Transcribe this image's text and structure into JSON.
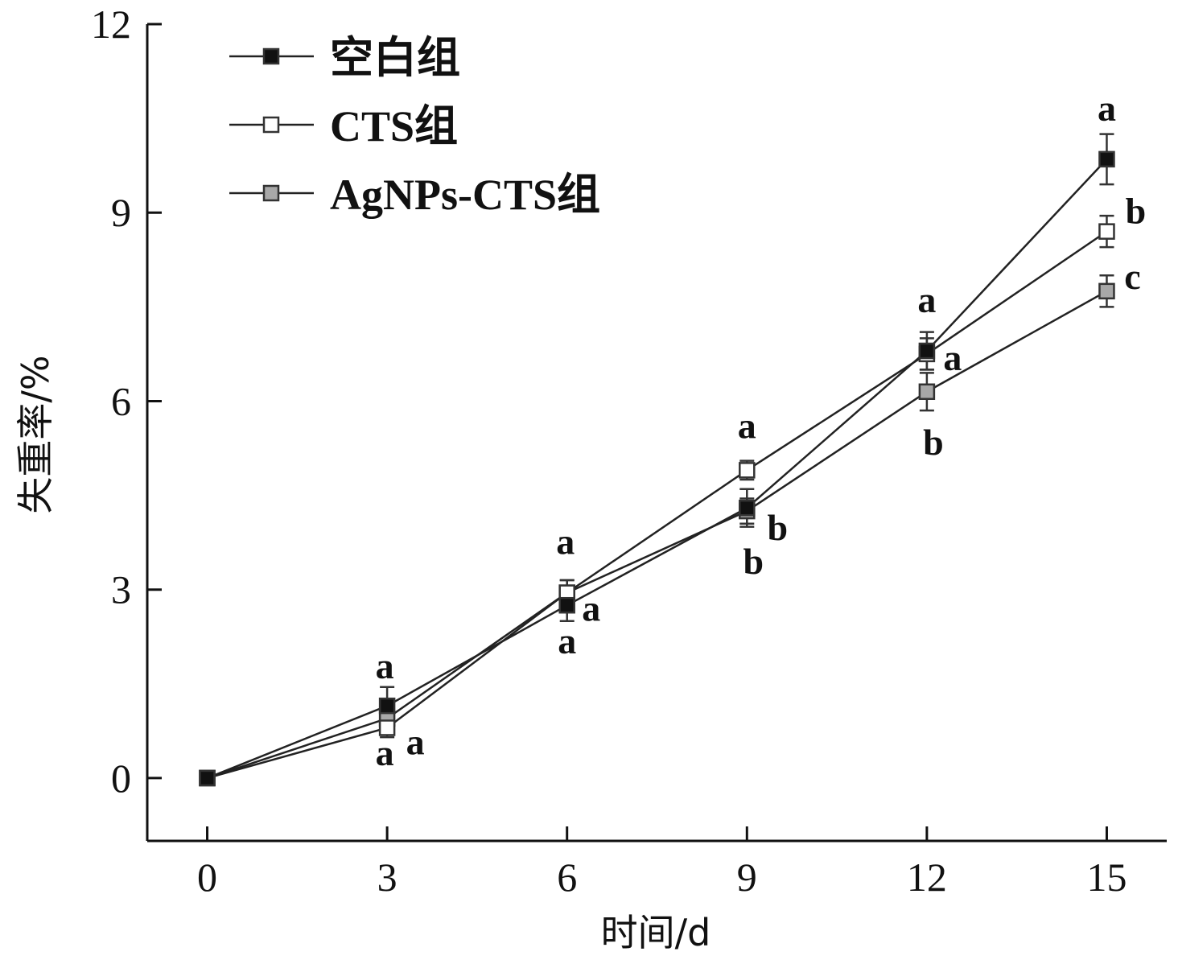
{
  "chart_data": {
    "type": "line",
    "title": "",
    "xlabel": "时间/d",
    "ylabel": "失重率/%",
    "xlim": [
      -1,
      16
    ],
    "ylim": [
      -1,
      12
    ],
    "x_ticks": [
      0,
      3,
      6,
      9,
      12,
      15
    ],
    "y_ticks": [
      0,
      3,
      6,
      9,
      12
    ],
    "grid": false,
    "legend_position": "top-left",
    "x": [
      0,
      3,
      6,
      9,
      12,
      15
    ],
    "series": [
      {
        "name": "空白组",
        "marker": "filled-black-square",
        "color": "#111111",
        "values": [
          0,
          1.15,
          2.75,
          4.3,
          6.8,
          9.85
        ],
        "errors": [
          0,
          0.3,
          0.25,
          0.3,
          0.3,
          0.4
        ],
        "labels": [
          "",
          "a",
          "a",
          "b",
          "a",
          "a"
        ]
      },
      {
        "name": "CTS组",
        "marker": "open-square",
        "color": "#ffffff",
        "values": [
          0,
          0.8,
          2.95,
          4.9,
          6.75,
          8.7
        ],
        "errors": [
          0,
          0.15,
          0.2,
          0.15,
          0.25,
          0.25
        ],
        "labels": [
          "",
          "a",
          "a",
          "a",
          "a",
          "b"
        ]
      },
      {
        "name": "AgNPs-CTS组",
        "marker": "gray-square",
        "color": "#a0a0a0",
        "values": [
          0,
          0.95,
          2.95,
          4.25,
          6.15,
          7.75
        ],
        "errors": [
          0,
          0.15,
          0.2,
          0.2,
          0.3,
          0.25
        ],
        "labels": [
          "",
          "a",
          "a",
          "b",
          "b",
          "c"
        ]
      }
    ]
  }
}
